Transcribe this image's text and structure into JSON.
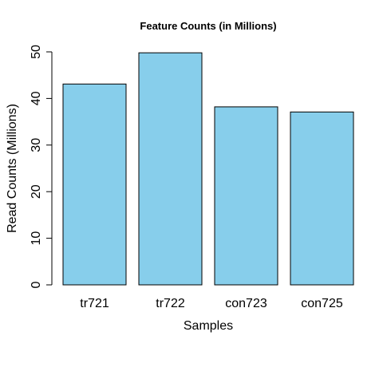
{
  "chart_data": {
    "type": "bar",
    "title": "Feature Counts (in Millions)",
    "xlabel": "Samples",
    "ylabel": "Read Counts (Millions)",
    "categories": [
      "tr721",
      "tr722",
      "con723",
      "con725"
    ],
    "values": [
      43.1,
      49.8,
      38.2,
      37.1
    ],
    "ylim": [
      0,
      50
    ],
    "yticks": [
      0,
      10,
      20,
      30,
      40,
      50
    ],
    "bar_color": "#87CEEB",
    "grid": false,
    "legend": "none"
  }
}
